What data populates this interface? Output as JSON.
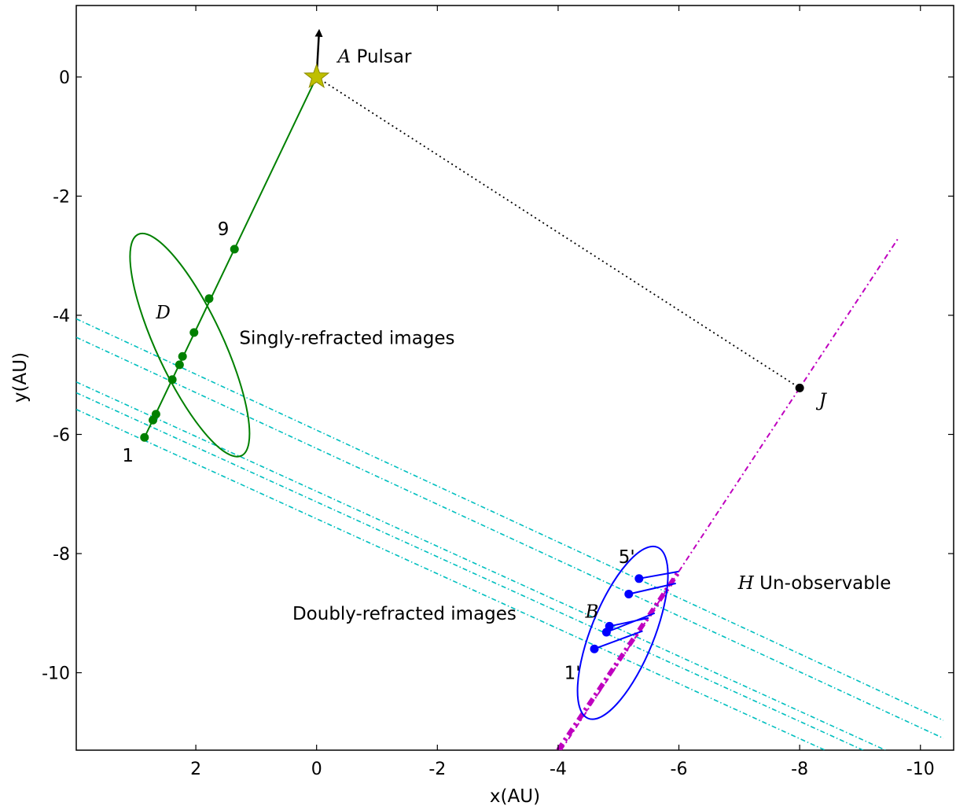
{
  "chart_data": {
    "type": "scatter",
    "xlabel": "x(AU)",
    "ylabel": "y(AU)",
    "xlim": [
      3.98,
      -10.55
    ],
    "ylim": [
      -11.3,
      1.2
    ],
    "x_axis_inverted": true,
    "grid": false,
    "x_ticks": [
      {
        "value": 2,
        "label": "2"
      },
      {
        "value": 0,
        "label": "0"
      },
      {
        "value": -2,
        "label": "-2"
      },
      {
        "value": -4,
        "label": "-4"
      },
      {
        "value": -6,
        "label": "-6"
      },
      {
        "value": -8,
        "label": "-8"
      },
      {
        "value": -10,
        "label": "-10"
      }
    ],
    "y_ticks": [
      {
        "value": 0,
        "label": "0"
      },
      {
        "value": -2,
        "label": "-2"
      },
      {
        "value": -4,
        "label": "-4"
      },
      {
        "value": -6,
        "label": "-6"
      },
      {
        "value": -8,
        "label": "-8"
      },
      {
        "value": -10,
        "label": "-10"
      }
    ],
    "pulsar": {
      "x": 0.0,
      "y": 0.0,
      "color": "#bfbf00"
    },
    "pulsar_velocity": {
      "x0": 0.0,
      "y0": 0.0,
      "x1": -0.04,
      "y1": 0.82,
      "color": "#000000"
    },
    "singly_line": {
      "x0": 0.0,
      "y0": 0.0,
      "x1": 2.85,
      "y1": -6.05,
      "color": "#008000"
    },
    "singly_points": {
      "color": "#008000",
      "x": [
        2.85,
        2.71,
        2.66,
        2.39,
        2.27,
        2.22,
        2.03,
        1.78,
        1.36
      ],
      "y": [
        -6.05,
        -5.76,
        -5.66,
        -5.08,
        -4.83,
        -4.69,
        -4.29,
        -3.72,
        -2.89
      ]
    },
    "singly_ellipse": {
      "cx": 2.1,
      "cy": -4.5,
      "rx": 0.55,
      "ry": 2.05,
      "rotate_deg": -25,
      "color": "#008000"
    },
    "doubly_points": {
      "color": "#0000ff",
      "x": [
        -4.6,
        -4.8,
        -4.85,
        -5.17,
        -5.34
      ],
      "y": [
        -9.6,
        -9.32,
        -9.22,
        -8.68,
        -8.42
      ]
    },
    "doubly_segments": {
      "color": "#0000ff",
      "list": [
        [
          -4.6,
          -9.6,
          -5.4,
          -9.3
        ],
        [
          -4.8,
          -9.32,
          -5.6,
          -9.0
        ],
        [
          -4.85,
          -9.22,
          -5.5,
          -9.08
        ],
        [
          -5.17,
          -8.68,
          -5.95,
          -8.5
        ],
        [
          -5.34,
          -8.42,
          -6.0,
          -8.3
        ]
      ]
    },
    "doubly_ellipse": {
      "cx": -5.07,
      "cy": -9.33,
      "rx": 0.52,
      "ry": 1.55,
      "rotate_deg": 22,
      "color": "#0000ff"
    },
    "dotted_line": {
      "x0": 0.0,
      "y0": 0.0,
      "x1": -8.0,
      "y1": -5.22,
      "color": "#000000"
    },
    "point_J": {
      "x": -8.0,
      "y": -5.22,
      "color": "#000000"
    },
    "magenta_line": {
      "x0": -4.05,
      "y0": -11.3,
      "x1": -9.65,
      "y1": -2.68,
      "color": "#bf00bf"
    },
    "magenta_thick": {
      "x0": -4.0,
      "y0": -11.3,
      "x1": -6.0,
      "y1": -8.3,
      "color": "#bf00bf"
    },
    "cyan_lines": {
      "color": "#00bfbf",
      "list": [
        [
          3.98,
          -4.06,
          -10.38,
          -10.8
        ],
        [
          3.98,
          -4.37,
          -10.38,
          -11.1
        ],
        [
          3.98,
          -5.12,
          -9.42,
          -11.3
        ],
        [
          3.98,
          -5.3,
          -9.05,
          -11.3
        ],
        [
          3.98,
          -5.58,
          -8.42,
          -11.3
        ]
      ]
    },
    "annotations": [
      {
        "id": "pulsar",
        "italic": "A",
        "text": "Pulsar",
        "x": -0.35,
        "y": 0.35
      },
      {
        "id": "label-9",
        "italic": "",
        "text": "9",
        "x": 1.64,
        "y": -2.55
      },
      {
        "id": "label-D",
        "italic": "D",
        "text": "",
        "x": 2.66,
        "y": -3.95
      },
      {
        "id": "singly",
        "italic": "",
        "text": "Singly-refracted images",
        "x": 1.28,
        "y": -4.38
      },
      {
        "id": "label-1",
        "italic": "",
        "text": "1",
        "x": 3.22,
        "y": -6.35
      },
      {
        "id": "label-J",
        "italic": "J",
        "text": "",
        "x": -8.32,
        "y": -5.42
      },
      {
        "id": "label-5p",
        "italic": "",
        "text": "5'",
        "x": -5.0,
        "y": -8.05
      },
      {
        "id": "label-H",
        "italic": "H",
        "text": "Un-observable",
        "x": -6.98,
        "y": -8.49
      },
      {
        "id": "doubly",
        "italic": "",
        "text": "Doubly-refracted images",
        "x": 0.4,
        "y": -9.0
      },
      {
        "id": "label-B",
        "italic": "B",
        "text": "",
        "x": -4.45,
        "y": -8.97
      },
      {
        "id": "label-1p",
        "italic": "",
        "text": "1'",
        "x": -4.1,
        "y": -10.0
      }
    ]
  }
}
